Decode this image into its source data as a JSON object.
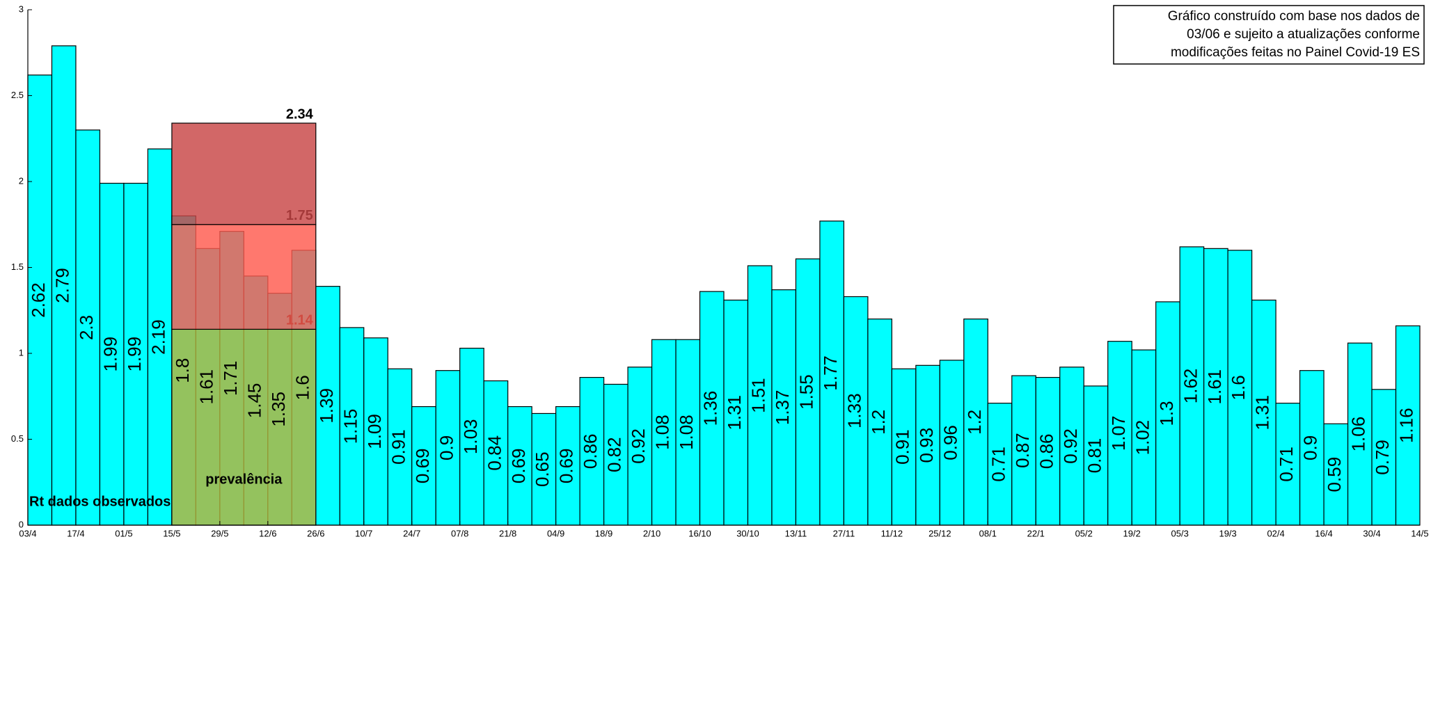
{
  "chart_data": {
    "type": "bar",
    "series": [
      {
        "name": "Rt dados observados",
        "color": "#00ffff",
        "values": [
          2.62,
          2.79,
          2.3,
          1.99,
          1.99,
          2.19,
          1.8,
          1.61,
          1.71,
          1.45,
          1.35,
          1.6,
          1.39,
          1.15,
          1.09,
          0.91,
          0.69,
          0.9,
          1.03,
          0.84,
          0.69,
          0.65,
          0.69,
          0.86,
          0.82,
          0.92,
          1.08,
          1.08,
          1.36,
          1.31,
          1.51,
          1.37,
          1.55,
          1.77,
          1.33,
          1.2,
          0.91,
          0.93,
          0.96,
          1.2,
          0.71,
          0.87,
          0.86,
          0.92,
          0.81,
          1.07,
          1.02,
          1.3,
          1.62,
          1.61,
          1.6,
          1.31,
          0.71,
          0.9,
          0.59,
          1.06,
          0.79,
          1.16
        ]
      }
    ],
    "xlim": [
      0,
      58
    ],
    "xticks": [
      {
        "value": 0,
        "label": "03/4"
      },
      {
        "value": 2,
        "label": "17/4"
      },
      {
        "value": 4,
        "label": "01/5"
      },
      {
        "value": 6,
        "label": "15/5"
      },
      {
        "value": 8,
        "label": "29/5"
      },
      {
        "value": 10,
        "label": "12/6"
      },
      {
        "value": 12,
        "label": "26/6"
      },
      {
        "value": 14,
        "label": "10/7"
      },
      {
        "value": 16,
        "label": "24/7"
      },
      {
        "value": 18,
        "label": "07/8"
      },
      {
        "value": 20,
        "label": "21/8"
      },
      {
        "value": 22,
        "label": "04/9"
      },
      {
        "value": 24,
        "label": "18/9"
      },
      {
        "value": 26,
        "label": "2/10"
      },
      {
        "value": 28,
        "label": "16/10"
      },
      {
        "value": 30,
        "label": "30/10"
      },
      {
        "value": 32,
        "label": "13/11"
      },
      {
        "value": 34,
        "label": "27/11"
      },
      {
        "value": 36,
        "label": "11/12"
      },
      {
        "value": 38,
        "label": "25/12"
      },
      {
        "value": 40,
        "label": "08/1"
      },
      {
        "value": 42,
        "label": "22/1"
      },
      {
        "value": 44,
        "label": "05/2"
      },
      {
        "value": 46,
        "label": "19/2"
      },
      {
        "value": 48,
        "label": "05/3"
      },
      {
        "value": 50,
        "label": "19/3"
      },
      {
        "value": 52,
        "label": "02/4"
      },
      {
        "value": 54,
        "label": "16/4"
      },
      {
        "value": 56,
        "label": "30/4"
      },
      {
        "value": 58,
        "label": "14/5"
      }
    ],
    "ylim": [
      0,
      3
    ],
    "yticks": [
      0,
      0.5,
      1,
      1.5,
      2,
      2.5,
      3
    ],
    "prevalence": {
      "label": "prevalência",
      "x": [
        6,
        12
      ],
      "levels": [
        1.14,
        1.75,
        2.34
      ],
      "colors": [
        "#b5b53a",
        "#ff5a4e",
        "#c84646"
      ]
    },
    "annotation": [
      "Gráfico construído com base nos dados de",
      "03/06 e sujeito a atualizações conforme",
      "modificações feitas no Painel Covid-19 ES"
    ]
  }
}
